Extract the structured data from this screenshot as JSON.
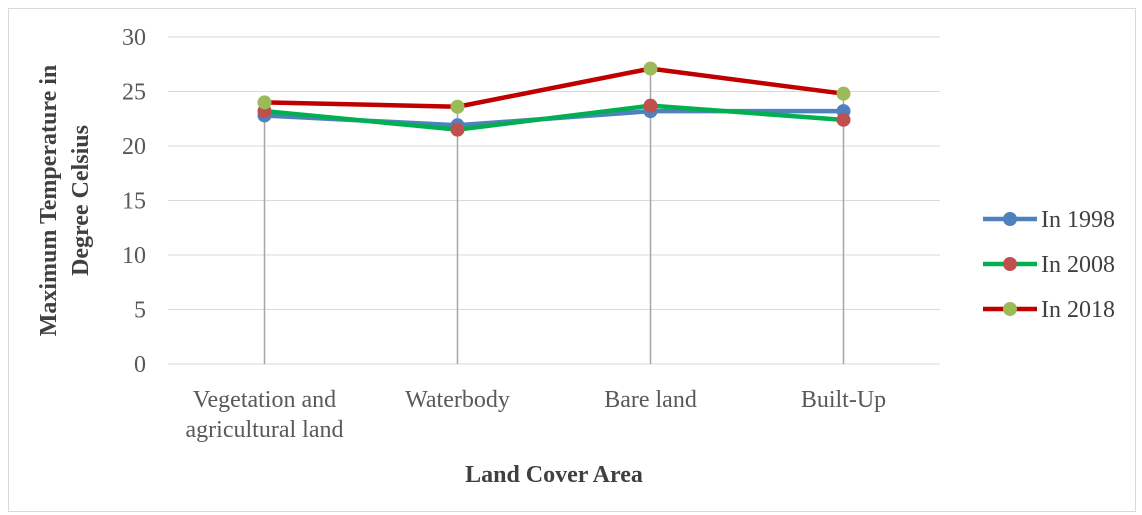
{
  "chart_data": {
    "type": "line",
    "title": "",
    "xlabel": "Land Cover Area",
    "ylabel": "Maximum Temperature in Degree Celsius",
    "ylabel_lines": [
      "Maximum Temperature in",
      "Degree Celsius"
    ],
    "categories": [
      "Vegetation and agricultural land",
      "Waterbody",
      "Bare land",
      "Built-Up"
    ],
    "category_lines": [
      [
        "Vegetation and",
        "agricultural land"
      ],
      [
        "Waterbody"
      ],
      [
        "Bare land"
      ],
      [
        "Built-Up"
      ]
    ],
    "ylim": [
      0,
      30
    ],
    "yticks": [
      0,
      5,
      10,
      15,
      20,
      25,
      30
    ],
    "grid": true,
    "legend_position": "right",
    "series": [
      {
        "name": "In 1998",
        "values": [
          22.8,
          21.9,
          23.2,
          23.2
        ],
        "line_color": "#4F81BD",
        "marker_color": "#4F81BD"
      },
      {
        "name": "In 2008",
        "values": [
          23.2,
          21.5,
          23.7,
          22.4
        ],
        "line_color": "#00B050",
        "marker_color": "#C0504D"
      },
      {
        "name": "In 2018",
        "values": [
          24.0,
          23.6,
          27.1,
          24.8
        ],
        "line_color": "#C00000",
        "marker_color": "#9BBB59"
      }
    ]
  }
}
